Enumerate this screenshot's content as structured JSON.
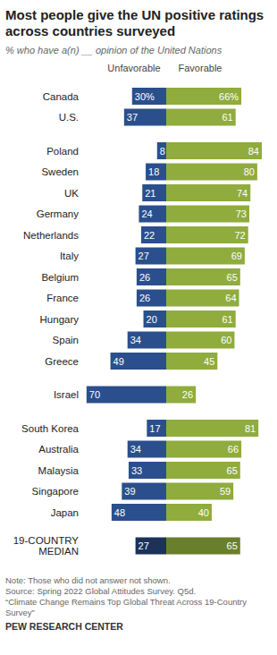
{
  "chart_data": [
    {
      "type": "bar",
      "orientation": "horizontal",
      "stacked": false,
      "data_labels": true,
      "tick_labels": "y",
      "title": "Most people give the UN positive ratings across countries surveyed",
      "subtitle": "% who have a(n) __ opinion of the United Nations",
      "categories": [
        "Canada",
        "U.S."
      ],
      "series": [
        {
          "name": "Unfavorable",
          "color": "#2b4f8c",
          "values": [
            30,
            37
          ],
          "value_labels": [
            "30%",
            "37"
          ]
        },
        {
          "name": "Favorable",
          "color": "#8fac3d",
          "values": [
            66,
            61
          ],
          "value_labels": [
            "66%",
            "61"
          ]
        }
      ]
    },
    {
      "type": "bar",
      "orientation": "horizontal",
      "data_labels": true,
      "tick_labels": "y",
      "categories": [
        "Poland",
        "Sweden",
        "UK",
        "Germany",
        "Netherlands",
        "Italy",
        "Belgium",
        "France",
        "Hungary",
        "Spain",
        "Greece"
      ],
      "series": [
        {
          "color": "#2b4f8c",
          "values": [
            8,
            18,
            21,
            24,
            22,
            27,
            26,
            26,
            20,
            34,
            49
          ]
        },
        {
          "color": "#8fac3d",
          "values": [
            84,
            80,
            74,
            73,
            72,
            69,
            65,
            64,
            61,
            60,
            45
          ]
        }
      ]
    },
    {
      "type": "bar",
      "orientation": "horizontal",
      "data_labels": true,
      "tick_labels": "y",
      "categories": [
        "Israel"
      ],
      "series": [
        {
          "color": "#2b4f8c",
          "values": [
            70
          ]
        },
        {
          "color": "#8fac3d",
          "values": [
            26
          ]
        }
      ]
    },
    {
      "type": "bar",
      "orientation": "horizontal",
      "data_labels": true,
      "tick_labels": "y",
      "categories": [
        "South Korea",
        "Australia",
        "Malaysia",
        "Singapore",
        "Japan"
      ],
      "series": [
        {
          "color": "#2b4f8c",
          "values": [
            17,
            34,
            33,
            39,
            48
          ]
        },
        {
          "color": "#8fac3d",
          "values": [
            81,
            66,
            65,
            59,
            40
          ]
        }
      ]
    },
    {
      "type": "bar",
      "orientation": "horizontal",
      "data_labels": true,
      "tick_labels": "y",
      "categories": [
        "19-COUNTRY MEDIAN"
      ],
      "series": [
        {
          "color": "#1c3258",
          "values": [
            27
          ]
        },
        {
          "color": "#6a7f2c",
          "values": [
            65
          ]
        }
      ],
      "annotations": [
        "Note: Those who did not answer not shown.",
        "Source: Spring 2022 Global Attitudes Survey. Q5d.",
        "“Climate Change Remains Top Global Threat Across 19-Country Survey”",
        "PEW RESEARCH CENTER"
      ]
    }
  ]
}
